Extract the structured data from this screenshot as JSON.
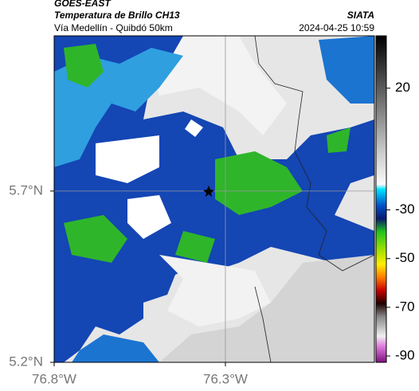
{
  "header": {
    "title": "GOES-EAST",
    "subtitle": "Temperatura de Brillo CH13",
    "source": "SIATA",
    "route": "Vía Medellín - Quibdó 50km",
    "timestamp": "2024-04-25 10:59"
  },
  "map": {
    "lonlim": [
      -76.8,
      -75.865
    ],
    "latlim": [
      5.2,
      6.153
    ],
    "lonticks": [
      {
        "value": -76.8,
        "label": "76.8°W"
      },
      {
        "value": -76.3,
        "label": "76.3°W"
      }
    ],
    "latticks": [
      {
        "value": 5.7,
        "label": "5.7°N"
      },
      {
        "value": 5.2,
        "label": "5.2°N"
      }
    ]
  },
  "colorbar": {
    "lim": [
      -92.6,
      41.5
    ],
    "ticks": [
      20,
      -30,
      -50,
      -70,
      -90
    ]
  }
}
